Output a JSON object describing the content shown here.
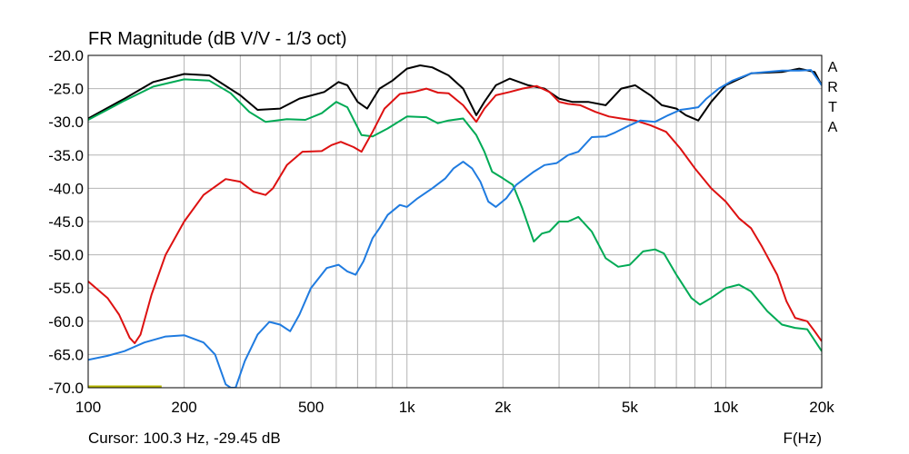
{
  "chart_data": {
    "type": "line",
    "title": "FR Magnitude (dB V/V - 1/3 oct)",
    "xlabel": "F(Hz)",
    "ylabel": "",
    "x_scale": "log",
    "xlim": [
      100,
      20000
    ],
    "ylim": [
      -70,
      -20
    ],
    "x_ticks": [
      100,
      200,
      500,
      1000,
      2000,
      5000,
      10000,
      20000
    ],
    "x_tick_labels": [
      "100",
      "200",
      "500",
      "1k",
      "2k",
      "5k",
      "10k",
      "20k"
    ],
    "y_ticks": [
      -20,
      -25,
      -30,
      -35,
      -40,
      -45,
      -50,
      -55,
      -60,
      -65,
      -70
    ],
    "y_tick_labels": [
      "-20.0",
      "-25.0",
      "-30.0",
      "-35.0",
      "-40.0",
      "-45.0",
      "-50.0",
      "-55.0",
      "-60.0",
      "-65.0",
      "-70.0"
    ],
    "grid": true,
    "series": [
      {
        "color": "#000000",
        "points": [
          [
            100,
            -29.5
          ],
          [
            130,
            -26.5
          ],
          [
            160,
            -24
          ],
          [
            200,
            -22.8
          ],
          [
            240,
            -23
          ],
          [
            300,
            -26
          ],
          [
            340,
            -28.2
          ],
          [
            400,
            -28
          ],
          [
            460,
            -26.5
          ],
          [
            550,
            -25.5
          ],
          [
            610,
            -24
          ],
          [
            650,
            -24.5
          ],
          [
            700,
            -27
          ],
          [
            750,
            -28
          ],
          [
            820,
            -25
          ],
          [
            900,
            -23.8
          ],
          [
            1000,
            -22
          ],
          [
            1100,
            -21.5
          ],
          [
            1200,
            -21.8
          ],
          [
            1350,
            -23
          ],
          [
            1500,
            -25
          ],
          [
            1650,
            -29
          ],
          [
            1750,
            -27
          ],
          [
            1900,
            -24.5
          ],
          [
            2100,
            -23.5
          ],
          [
            2400,
            -24.5
          ],
          [
            2700,
            -25
          ],
          [
            3000,
            -26.5
          ],
          [
            3300,
            -27
          ],
          [
            3700,
            -27
          ],
          [
            4200,
            -27.5
          ],
          [
            4700,
            -25
          ],
          [
            5200,
            -24.5
          ],
          [
            5800,
            -26
          ],
          [
            6300,
            -27.5
          ],
          [
            7000,
            -28
          ],
          [
            7500,
            -29
          ],
          [
            8200,
            -29.8
          ],
          [
            9000,
            -27
          ],
          [
            10000,
            -24.5
          ],
          [
            12000,
            -22.7
          ],
          [
            15000,
            -22.5
          ],
          [
            17000,
            -22
          ],
          [
            19000,
            -22.5
          ],
          [
            20000,
            -24.5
          ]
        ]
      },
      {
        "color": "#00aa55",
        "points": [
          [
            100,
            -29.7
          ],
          [
            130,
            -26.8
          ],
          [
            160,
            -24.7
          ],
          [
            200,
            -23.6
          ],
          [
            240,
            -23.8
          ],
          [
            280,
            -25.7
          ],
          [
            320,
            -28.5
          ],
          [
            360,
            -30
          ],
          [
            420,
            -29.6
          ],
          [
            480,
            -29.7
          ],
          [
            540,
            -28.7
          ],
          [
            600,
            -27
          ],
          [
            650,
            -27.8
          ],
          [
            720,
            -32
          ],
          [
            780,
            -32.2
          ],
          [
            870,
            -31
          ],
          [
            1000,
            -29.2
          ],
          [
            1150,
            -29.3
          ],
          [
            1250,
            -30.2
          ],
          [
            1350,
            -29.8
          ],
          [
            1500,
            -29.5
          ],
          [
            1650,
            -32
          ],
          [
            1750,
            -34.5
          ],
          [
            1850,
            -37.5
          ],
          [
            2000,
            -38.5
          ],
          [
            2150,
            -39.5
          ],
          [
            2300,
            -43
          ],
          [
            2500,
            -48
          ],
          [
            2650,
            -46.8
          ],
          [
            2800,
            -46.5
          ],
          [
            3000,
            -45
          ],
          [
            3200,
            -45
          ],
          [
            3450,
            -44.3
          ],
          [
            3800,
            -46.5
          ],
          [
            4200,
            -50.5
          ],
          [
            4600,
            -51.8
          ],
          [
            5000,
            -51.5
          ],
          [
            5500,
            -49.5
          ],
          [
            6000,
            -49.2
          ],
          [
            6400,
            -49.8
          ],
          [
            7000,
            -53
          ],
          [
            7800,
            -56.5
          ],
          [
            8300,
            -57.5
          ],
          [
            9000,
            -56.5
          ],
          [
            10000,
            -55
          ],
          [
            11000,
            -54.5
          ],
          [
            12000,
            -55.5
          ],
          [
            13500,
            -58.5
          ],
          [
            15000,
            -60.5
          ],
          [
            16500,
            -61
          ],
          [
            18000,
            -61.2
          ],
          [
            20000,
            -64.5
          ]
        ]
      },
      {
        "color": "#dd1111",
        "points": [
          [
            100,
            -54
          ],
          [
            115,
            -56.5
          ],
          [
            125,
            -59
          ],
          [
            135,
            -62.5
          ],
          [
            140,
            -63.3
          ],
          [
            146,
            -62
          ],
          [
            158,
            -56
          ],
          [
            175,
            -50
          ],
          [
            200,
            -45
          ],
          [
            230,
            -41
          ],
          [
            270,
            -38.6
          ],
          [
            300,
            -39
          ],
          [
            330,
            -40.5
          ],
          [
            360,
            -41
          ],
          [
            380,
            -40
          ],
          [
            420,
            -36.5
          ],
          [
            470,
            -34.5
          ],
          [
            540,
            -34.4
          ],
          [
            580,
            -33.5
          ],
          [
            620,
            -33
          ],
          [
            680,
            -33.8
          ],
          [
            720,
            -34.5
          ],
          [
            780,
            -31.5
          ],
          [
            850,
            -28
          ],
          [
            950,
            -25.8
          ],
          [
            1050,
            -25.5
          ],
          [
            1150,
            -25
          ],
          [
            1250,
            -25.6
          ],
          [
            1350,
            -25.7
          ],
          [
            1500,
            -27.5
          ],
          [
            1650,
            -30
          ],
          [
            1750,
            -28
          ],
          [
            1900,
            -26
          ],
          [
            2100,
            -25.5
          ],
          [
            2300,
            -25
          ],
          [
            2550,
            -24.6
          ],
          [
            2800,
            -25.5
          ],
          [
            3000,
            -27
          ],
          [
            3200,
            -27.3
          ],
          [
            3500,
            -27.5
          ],
          [
            3900,
            -28.5
          ],
          [
            4300,
            -29.2
          ],
          [
            4700,
            -29.5
          ],
          [
            5200,
            -29.8
          ],
          [
            5800,
            -30.5
          ],
          [
            6500,
            -31.5
          ],
          [
            7200,
            -34
          ],
          [
            8000,
            -37
          ],
          [
            9000,
            -40
          ],
          [
            10000,
            -42
          ],
          [
            11000,
            -44.5
          ],
          [
            12000,
            -46
          ],
          [
            13000,
            -48.8
          ],
          [
            14500,
            -53
          ],
          [
            15500,
            -57
          ],
          [
            16500,
            -59.5
          ],
          [
            18000,
            -60
          ],
          [
            19000,
            -61.5
          ],
          [
            20000,
            -63
          ]
        ]
      },
      {
        "color": "#1f7be0",
        "points": [
          [
            100,
            -65.8
          ],
          [
            115,
            -65.2
          ],
          [
            130,
            -64.5
          ],
          [
            150,
            -63.2
          ],
          [
            175,
            -62.3
          ],
          [
            200,
            -62.1
          ],
          [
            230,
            -63.2
          ],
          [
            250,
            -65
          ],
          [
            270,
            -69.5
          ],
          [
            280,
            -70
          ],
          [
            290,
            -70
          ],
          [
            310,
            -66
          ],
          [
            340,
            -62
          ],
          [
            370,
            -60.1
          ],
          [
            400,
            -60.5
          ],
          [
            430,
            -61.5
          ],
          [
            460,
            -59
          ],
          [
            500,
            -55
          ],
          [
            560,
            -52
          ],
          [
            610,
            -51.5
          ],
          [
            650,
            -52.5
          ],
          [
            690,
            -53
          ],
          [
            730,
            -51
          ],
          [
            780,
            -47.5
          ],
          [
            820,
            -46
          ],
          [
            870,
            -44
          ],
          [
            950,
            -42.5
          ],
          [
            1000,
            -42.8
          ],
          [
            1080,
            -41.5
          ],
          [
            1200,
            -40
          ],
          [
            1320,
            -38.5
          ],
          [
            1400,
            -37
          ],
          [
            1500,
            -36
          ],
          [
            1600,
            -37
          ],
          [
            1700,
            -39
          ],
          [
            1800,
            -42
          ],
          [
            1900,
            -42.8
          ],
          [
            2050,
            -41.5
          ],
          [
            2200,
            -39.5
          ],
          [
            2500,
            -37.5
          ],
          [
            2700,
            -36.5
          ],
          [
            2950,
            -36.2
          ],
          [
            3200,
            -35
          ],
          [
            3450,
            -34.5
          ],
          [
            3800,
            -32.3
          ],
          [
            4200,
            -32.2
          ],
          [
            4500,
            -31.6
          ],
          [
            5000,
            -30.5
          ],
          [
            5400,
            -29.8
          ],
          [
            6000,
            -30
          ],
          [
            6600,
            -29
          ],
          [
            7200,
            -28.2
          ],
          [
            7700,
            -28
          ],
          [
            8200,
            -27.8
          ],
          [
            8700,
            -26.5
          ],
          [
            9500,
            -25
          ],
          [
            10500,
            -23.8
          ],
          [
            12000,
            -22.7
          ],
          [
            15000,
            -22.3
          ],
          [
            17000,
            -22.3
          ],
          [
            18500,
            -22.2
          ],
          [
            20000,
            -24.5
          ]
        ]
      },
      {
        "color": "#b8b800",
        "points": [
          [
            100,
            -69.8
          ],
          [
            170,
            -69.8
          ]
        ]
      }
    ],
    "brand": "A R T A",
    "cursor_readout": "Cursor: 100.3 Hz, -29.45 dB"
  }
}
